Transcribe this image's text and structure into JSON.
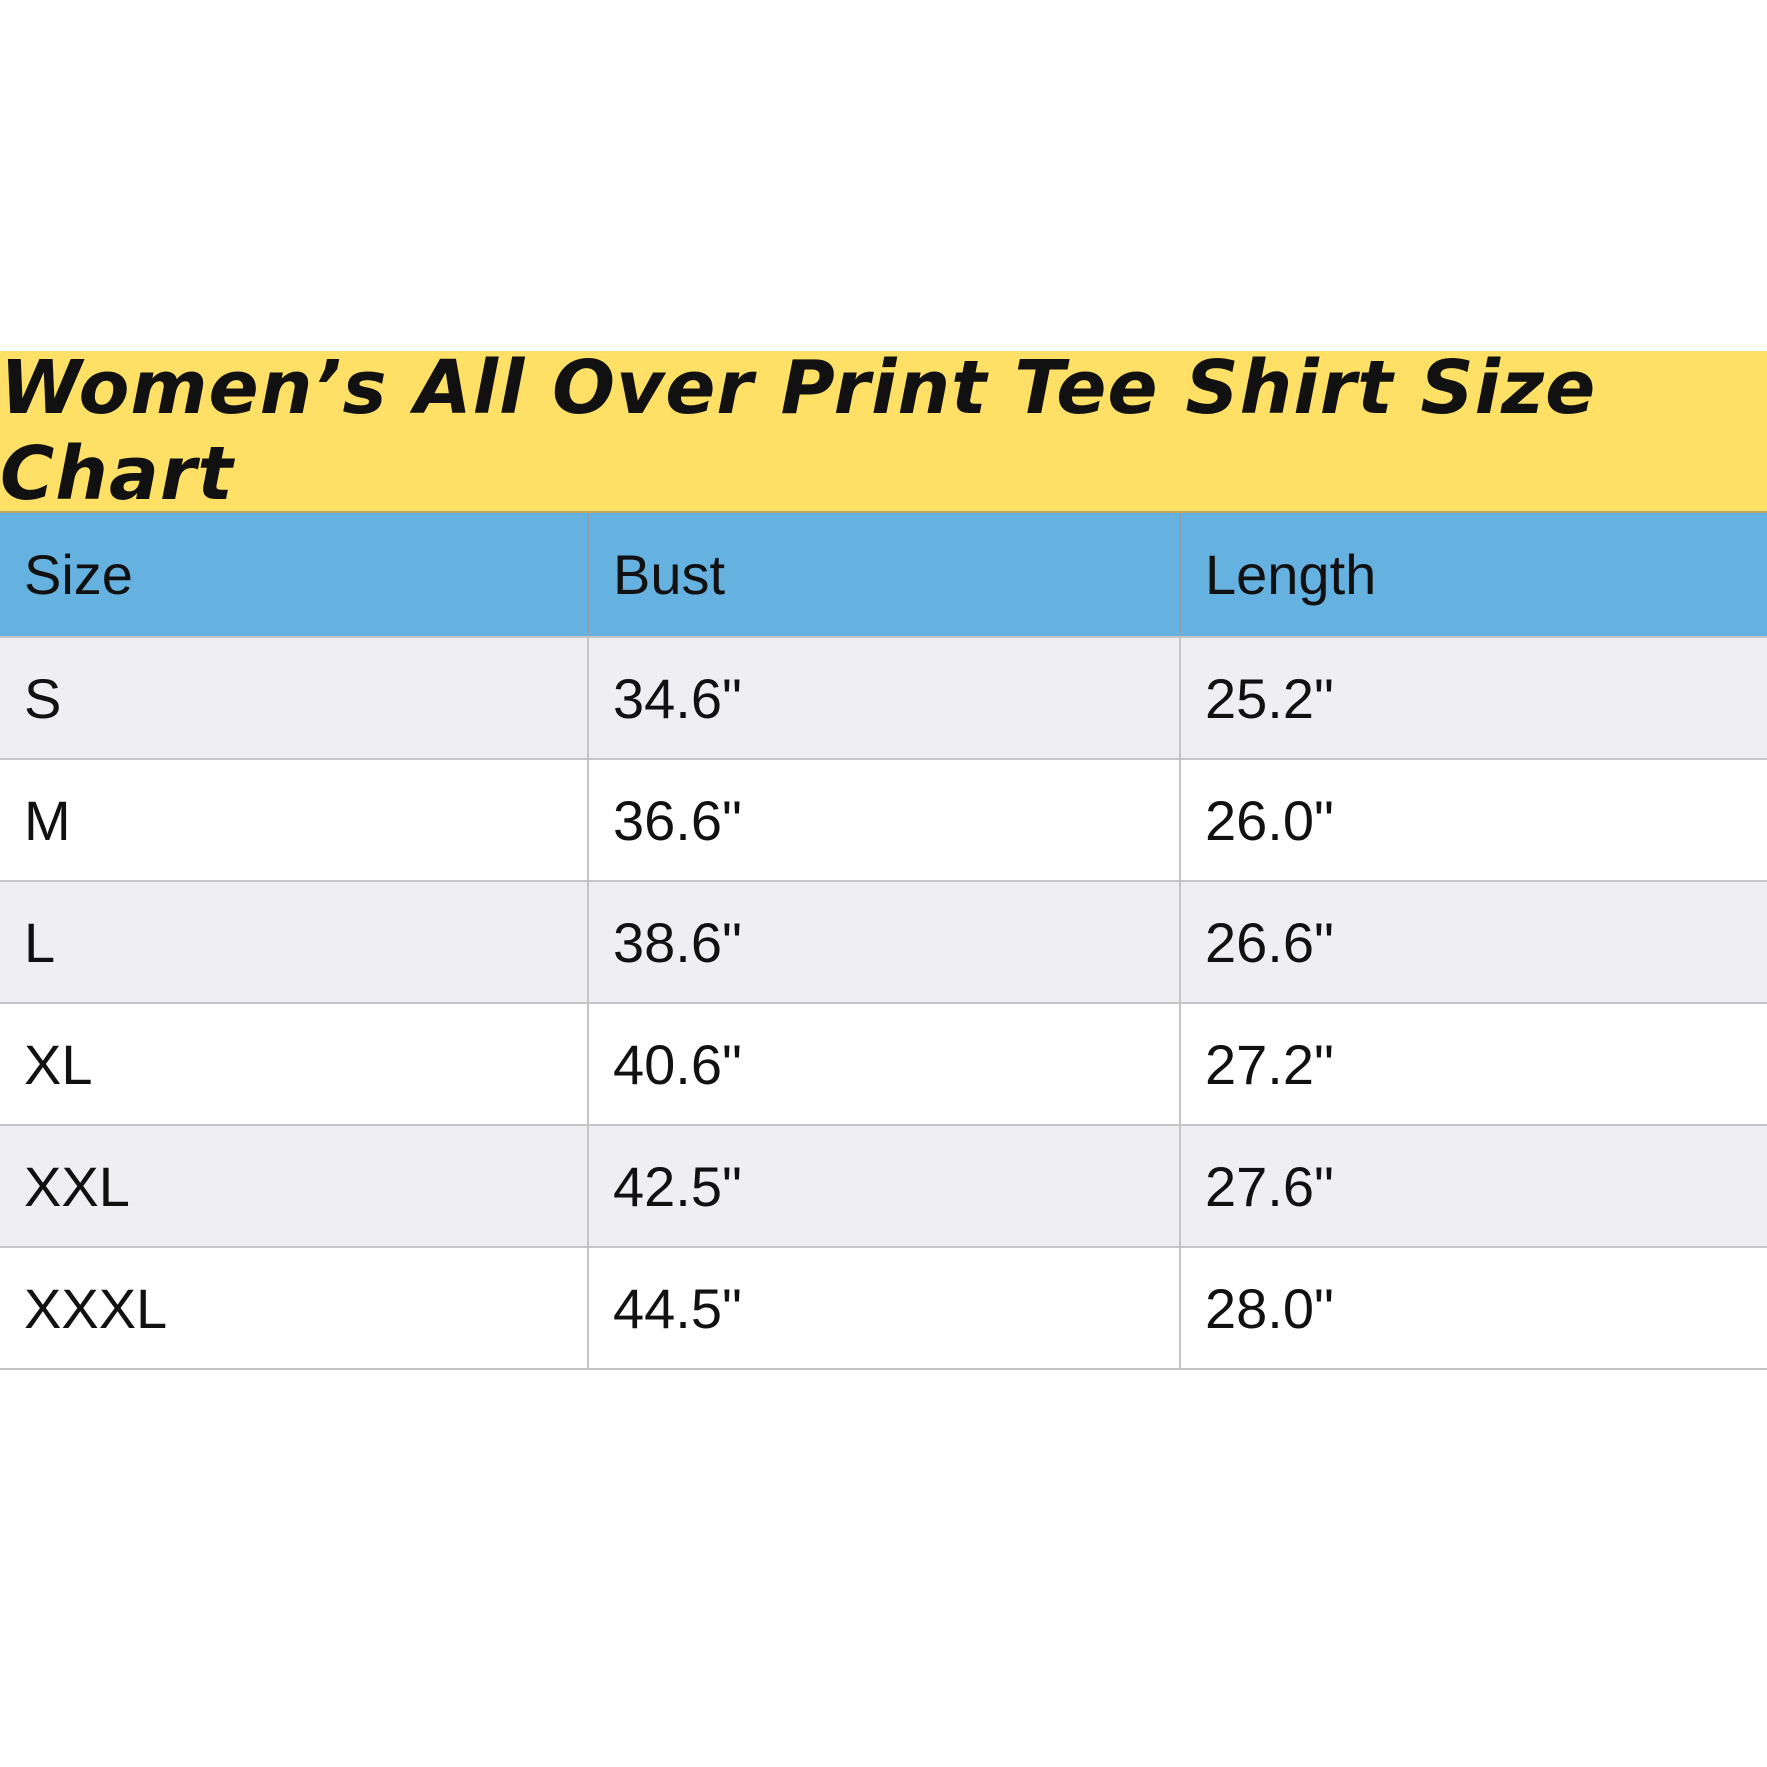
{
  "title": "Women’s All Over Print Tee Shirt Size Chart",
  "colors": {
    "title_bg": "#fee066",
    "header_bg": "#65b2e0",
    "row_alt_bg": "#efeef2"
  },
  "table": {
    "headers": [
      "Size",
      "Bust",
      "Length"
    ],
    "rows": [
      [
        "S",
        "34.6\"",
        "25.2\""
      ],
      [
        "M",
        "36.6\"",
        "26.0\""
      ],
      [
        "L",
        "38.6\"",
        "26.6\""
      ],
      [
        "XL",
        "40.6\"",
        "27.2\""
      ],
      [
        "XXL",
        "42.5\"",
        "27.6\""
      ],
      [
        "XXXL",
        "44.5\"",
        "28.0\""
      ]
    ]
  }
}
